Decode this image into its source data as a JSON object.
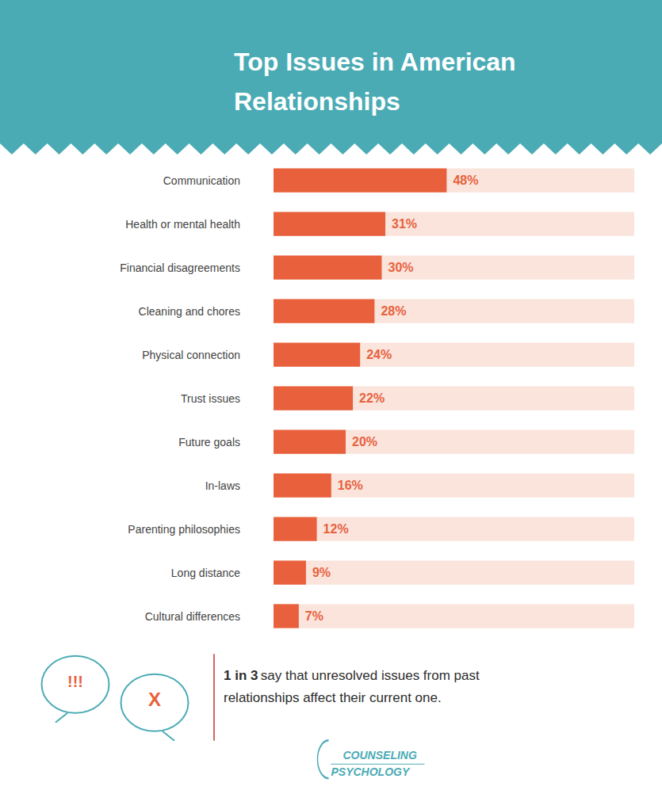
{
  "chart_data": {
    "type": "bar",
    "orientation": "horizontal",
    "title": "Top Issues in American\nRelationships",
    "categories": [
      "Communication",
      "Health or mental health",
      "Financial disagreements",
      "Cleaning and chores",
      "Physical connection",
      "Trust issues",
      "Future goals",
      "In-laws",
      "Parenting philosophies",
      "Long distance",
      "Cultural differences"
    ],
    "values": [
      48,
      31,
      30,
      28,
      24,
      22,
      20,
      16,
      12,
      9,
      7
    ],
    "value_labels": [
      "48%",
      "31%",
      "30%",
      "28%",
      "24%",
      "22%",
      "20%",
      "16%",
      "12%",
      "9%",
      "7%"
    ],
    "data_labels": true,
    "color": "#E8613C",
    "xlim": [
      0,
      100
    ],
    "grid": false,
    "tick_labels": "y",
    "annotations": [
      "1 in 3",
      "say that unresolved issues from past",
      "relationships affect their current one.",
      "!!!",
      "X",
      "COUNSELING",
      "PSYCHOLOGY"
    ]
  }
}
